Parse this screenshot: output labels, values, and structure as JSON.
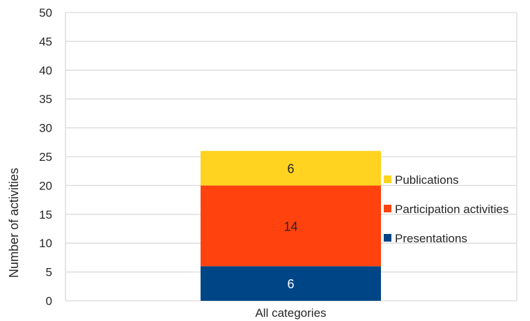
{
  "chart_data": {
    "type": "bar",
    "stacked": true,
    "categories": [
      "All categories"
    ],
    "series": [
      {
        "name": "Presentations",
        "values": [
          6
        ],
        "color": "#004586",
        "label_color": "#ffffff"
      },
      {
        "name": "Participation activities",
        "values": [
          14
        ],
        "color": "#ff420e",
        "label_color": "#262626"
      },
      {
        "name": "Publications",
        "values": [
          6
        ],
        "color": "#ffd320",
        "label_color": "#262626"
      }
    ],
    "title": "",
    "xlabel": "",
    "ylabel": "Number of activities",
    "ylim": [
      0,
      50
    ],
    "yticks": [
      "0",
      "5",
      "10",
      "15",
      "20",
      "25",
      "30",
      "35",
      "40",
      "45",
      "50"
    ],
    "grid": true,
    "legend_position": "right",
    "legend_order": [
      "Publications",
      "Participation activities",
      "Presentations"
    ]
  }
}
